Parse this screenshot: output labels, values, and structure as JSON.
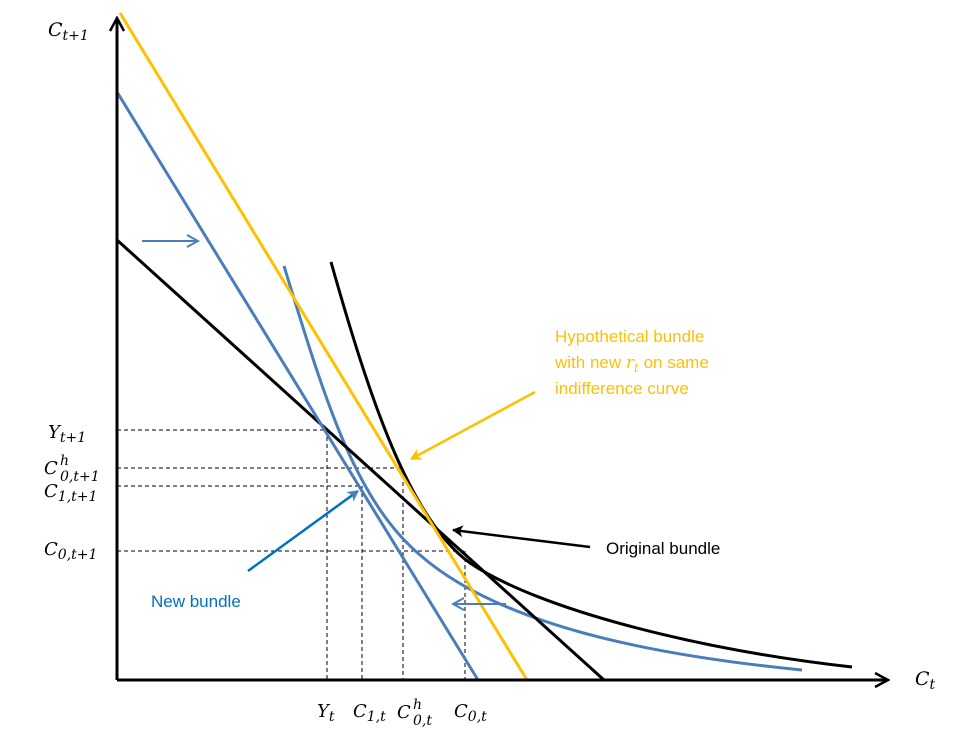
{
  "axes": {
    "x_label": {
      "base": "C",
      "sub": "t"
    },
    "y_label": {
      "base": "C",
      "sub": "t+1"
    }
  },
  "y_ticks": [
    {
      "base": "Y",
      "sub": "t+1",
      "sup": ""
    },
    {
      "base": "C",
      "sub": "0,t+1",
      "sup": "h"
    },
    {
      "base": "C",
      "sub": "1,t+1",
      "sup": ""
    },
    {
      "base": "C",
      "sub": "0,t+1",
      "sup": ""
    }
  ],
  "x_ticks": [
    {
      "base": "Y",
      "sub": "t",
      "sup": ""
    },
    {
      "base": "C",
      "sub": "1,t",
      "sup": ""
    },
    {
      "base": "C",
      "sub": "0,t",
      "sup": "h"
    },
    {
      "base": "C",
      "sub": "0,t",
      "sup": ""
    }
  ],
  "annotations": {
    "hypothetical": {
      "line1": "Hypothetical bundle",
      "line2_pre": "with new ",
      "line2_var": "r",
      "line2_sub": "t",
      "line2_post": " on same",
      "line3": "indifference curve"
    },
    "original": "Original bundle",
    "new": "New bundle"
  },
  "colors": {
    "black": "#000000",
    "blue": "#4a7ebb",
    "gold": "#ffc000",
    "new_bundle_text": "#0070c0"
  }
}
